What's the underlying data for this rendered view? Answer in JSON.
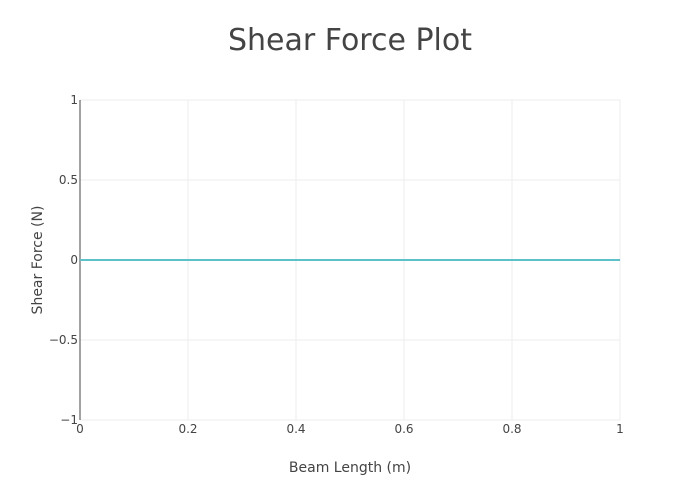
{
  "chart_data": {
    "type": "line",
    "title": "Shear Force Plot",
    "xlabel": "Beam Length (m)",
    "ylabel": "Shear Force (N)",
    "xlim": [
      0,
      1
    ],
    "ylim": [
      -1,
      1
    ],
    "x_ticks": [
      0,
      0.2,
      0.4,
      0.6,
      0.8,
      1
    ],
    "x_tick_labels": [
      "0",
      "0.2",
      "0.4",
      "0.6",
      "0.8",
      "1"
    ],
    "y_ticks": [
      -1,
      -0.5,
      0,
      0.5,
      1
    ],
    "y_tick_labels": [
      "−1",
      "−0.5",
      "0",
      "0.5",
      "1"
    ],
    "grid": true,
    "legend": "none",
    "series": [
      {
        "color": "#5bc2c9",
        "x": [
          0,
          1
        ],
        "y": [
          0,
          0
        ]
      }
    ]
  }
}
